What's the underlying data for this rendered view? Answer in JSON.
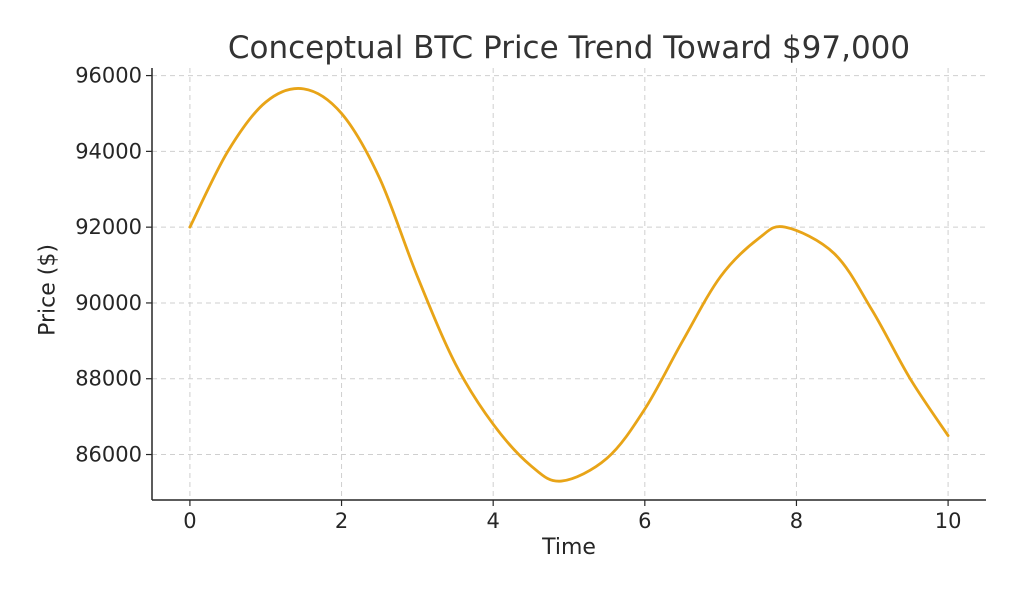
{
  "chart_data": {
    "type": "line",
    "title": "Conceptual BTC Price Trend Toward $97,000",
    "xlabel": "Time",
    "ylabel": "Price ($)",
    "xlim": [
      -0.5,
      10.5
    ],
    "ylim": [
      84800,
      96200
    ],
    "x_ticks": [
      "0",
      "2",
      "4",
      "6",
      "8",
      "10"
    ],
    "y_ticks": [
      "86000",
      "88000",
      "90000",
      "92000",
      "94000",
      "96000"
    ],
    "grid": true,
    "series": [
      {
        "color": "#E8A417",
        "x": [
          0,
          0.5,
          1.0,
          1.5,
          2.0,
          2.5,
          3.0,
          3.5,
          4.0,
          4.5,
          4.9,
          5.5,
          6.0,
          6.5,
          7.0,
          7.5,
          7.85,
          8.5,
          9.0,
          9.5,
          10.0
        ],
        "y": [
          92000,
          94000,
          95300,
          95650,
          95000,
          93300,
          90700,
          88400,
          86800,
          85700,
          85300,
          85900,
          87200,
          89000,
          90700,
          91700,
          92000,
          91300,
          89800,
          88000,
          86500
        ]
      }
    ]
  }
}
